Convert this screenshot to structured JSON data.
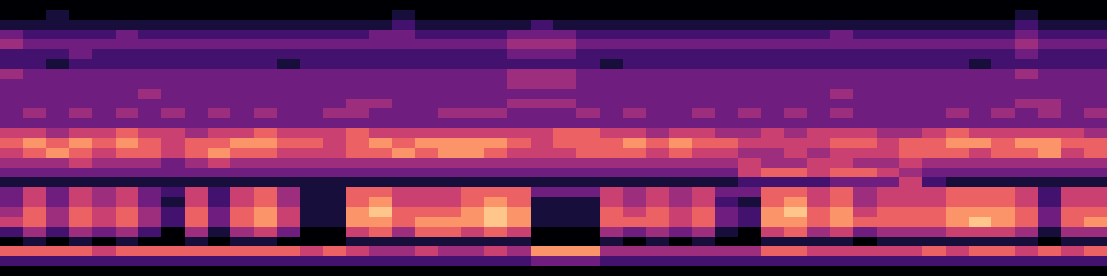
{
  "chart_data": {
    "type": "heatmap",
    "tick_labels": false,
    "zlim": [
      0,
      9
    ],
    "cells": [
      [
        0,
        0,
        0,
        0,
        0,
        0,
        0,
        0,
        0,
        0,
        0,
        0,
        0,
        0,
        0,
        0,
        0,
        0,
        0,
        0,
        0,
        0,
        0,
        0,
        0,
        0,
        0,
        0,
        0,
        0,
        0,
        0,
        0,
        0,
        0,
        0,
        0,
        0,
        0,
        0,
        0,
        0,
        0,
        0,
        0,
        0,
        0,
        0
      ],
      [
        0,
        0,
        1,
        0,
        0,
        0,
        0,
        0,
        0,
        0,
        0,
        0,
        0,
        0,
        0,
        0,
        0,
        1,
        0,
        0,
        0,
        0,
        0,
        0,
        0,
        0,
        0,
        0,
        0,
        0,
        0,
        0,
        0,
        0,
        0,
        0,
        0,
        0,
        0,
        0,
        0,
        0,
        0,
        0,
        1,
        0,
        0,
        0
      ],
      [
        1,
        1,
        1,
        1,
        1,
        1,
        1,
        1,
        1,
        1,
        1,
        1,
        1,
        1,
        1,
        1,
        1,
        2,
        1,
        1,
        1,
        1,
        1,
        2,
        1,
        1,
        1,
        1,
        1,
        1,
        1,
        1,
        1,
        1,
        1,
        1,
        1,
        1,
        1,
        1,
        1,
        1,
        1,
        1,
        2,
        1,
        1,
        1
      ],
      [
        3,
        2,
        2,
        2,
        2,
        3,
        2,
        2,
        2,
        2,
        2,
        2,
        2,
        2,
        2,
        2,
        3,
        3,
        2,
        2,
        2,
        2,
        3,
        3,
        3,
        2,
        2,
        2,
        2,
        2,
        2,
        2,
        2,
        2,
        2,
        2,
        3,
        2,
        2,
        2,
        2,
        2,
        2,
        2,
        3,
        2,
        2,
        2
      ],
      [
        4,
        3,
        3,
        3,
        3,
        3,
        3,
        3,
        3,
        3,
        3,
        3,
        3,
        3,
        3,
        3,
        3,
        3,
        3,
        3,
        3,
        3,
        4,
        4,
        4,
        3,
        3,
        3,
        3,
        3,
        3,
        3,
        3,
        3,
        3,
        3,
        3,
        3,
        3,
        3,
        3,
        3,
        3,
        3,
        4,
        3,
        3,
        3
      ],
      [
        2,
        2,
        2,
        3,
        2,
        2,
        2,
        2,
        2,
        2,
        2,
        2,
        2,
        2,
        2,
        2,
        2,
        2,
        2,
        2,
        2,
        2,
        3,
        3,
        3,
        2,
        2,
        2,
        2,
        2,
        2,
        2,
        2,
        2,
        2,
        2,
        2,
        2,
        2,
        2,
        2,
        2,
        2,
        2,
        3,
        2,
        2,
        2
      ],
      [
        2,
        2,
        1,
        2,
        2,
        2,
        2,
        2,
        2,
        2,
        2,
        2,
        1,
        2,
        2,
        2,
        2,
        2,
        2,
        2,
        2,
        2,
        2,
        2,
        2,
        2,
        1,
        2,
        2,
        2,
        2,
        2,
        2,
        2,
        2,
        2,
        2,
        2,
        2,
        2,
        2,
        2,
        1,
        2,
        2,
        2,
        2,
        2
      ],
      [
        4,
        3,
        3,
        3,
        3,
        3,
        3,
        3,
        3,
        3,
        3,
        3,
        3,
        3,
        3,
        3,
        3,
        3,
        3,
        3,
        3,
        3,
        4,
        4,
        4,
        3,
        3,
        3,
        3,
        3,
        3,
        3,
        3,
        3,
        3,
        3,
        3,
        3,
        3,
        3,
        3,
        3,
        3,
        3,
        4,
        3,
        3,
        3
      ],
      [
        3,
        3,
        3,
        3,
        3,
        3,
        3,
        3,
        3,
        3,
        3,
        3,
        3,
        3,
        3,
        3,
        3,
        3,
        3,
        3,
        3,
        3,
        4,
        4,
        4,
        3,
        3,
        3,
        3,
        3,
        3,
        3,
        3,
        3,
        3,
        3,
        3,
        3,
        3,
        3,
        3,
        3,
        3,
        3,
        3,
        3,
        3,
        3
      ],
      [
        3,
        3,
        3,
        3,
        3,
        3,
        4,
        3,
        3,
        3,
        3,
        3,
        3,
        3,
        3,
        3,
        3,
        3,
        3,
        3,
        3,
        3,
        3,
        3,
        3,
        3,
        3,
        3,
        3,
        3,
        3,
        3,
        3,
        3,
        3,
        3,
        4,
        3,
        3,
        3,
        3,
        3,
        3,
        3,
        3,
        3,
        3,
        3
      ],
      [
        3,
        3,
        3,
        3,
        3,
        3,
        3,
        3,
        3,
        3,
        3,
        3,
        3,
        3,
        3,
        4,
        4,
        3,
        3,
        3,
        3,
        3,
        4,
        4,
        4,
        3,
        3,
        3,
        3,
        3,
        3,
        3,
        3,
        3,
        3,
        3,
        3,
        3,
        3,
        3,
        3,
        3,
        3,
        3,
        4,
        4,
        3,
        3
      ],
      [
        3,
        4,
        3,
        4,
        3,
        4,
        3,
        4,
        3,
        4,
        3,
        4,
        3,
        3,
        4,
        4,
        3,
        3,
        3,
        4,
        4,
        4,
        3,
        3,
        3,
        4,
        3,
        4,
        3,
        3,
        4,
        3,
        4,
        3,
        4,
        3,
        4,
        3,
        3,
        3,
        3,
        4,
        3,
        4,
        3,
        4,
        3,
        4
      ],
      [
        3,
        3,
        3,
        3,
        3,
        3,
        3,
        3,
        3,
        3,
        3,
        3,
        3,
        3,
        3,
        3,
        3,
        3,
        3,
        3,
        3,
        3,
        3,
        3,
        3,
        3,
        3,
        3,
        3,
        3,
        3,
        3,
        3,
        3,
        3,
        3,
        3,
        3,
        3,
        3,
        3,
        3,
        3,
        3,
        3,
        3,
        3,
        3
      ],
      [
        5,
        5,
        4,
        5,
        5,
        6,
        5,
        5,
        4,
        5,
        5,
        6,
        5,
        5,
        5,
        6,
        5,
        5,
        5,
        5,
        5,
        5,
        5,
        5,
        6,
        6,
        5,
        5,
        4,
        5,
        5,
        4,
        4,
        5,
        4,
        5,
        5,
        5,
        4,
        4,
        5,
        6,
        5,
        5,
        5,
        5,
        5,
        4
      ],
      [
        6,
        7,
        6,
        7,
        6,
        7,
        6,
        5,
        6,
        6,
        7,
        7,
        6,
        6,
        5,
        6,
        7,
        6,
        7,
        7,
        7,
        7,
        6,
        5,
        6,
        6,
        6,
        7,
        6,
        7,
        6,
        6,
        5,
        5,
        5,
        5,
        6,
        6,
        5,
        6,
        6,
        7,
        7,
        6,
        7,
        7,
        6,
        6
      ],
      [
        5,
        6,
        7,
        6,
        5,
        6,
        6,
        5,
        6,
        7,
        6,
        6,
        5,
        5,
        5,
        6,
        6,
        7,
        6,
        7,
        7,
        6,
        5,
        5,
        5,
        6,
        6,
        6,
        5,
        6,
        5,
        5,
        4,
        4,
        5,
        4,
        5,
        5,
        5,
        6,
        6,
        6,
        5,
        6,
        6,
        7,
        5,
        6
      ],
      [
        4,
        4,
        4,
        5,
        4,
        4,
        4,
        3,
        4,
        5,
        4,
        4,
        4,
        4,
        4,
        4,
        4,
        4,
        4,
        4,
        4,
        4,
        4,
        4,
        4,
        4,
        4,
        4,
        4,
        4,
        4,
        4,
        5,
        4,
        4,
        5,
        5,
        4,
        4,
        5,
        4,
        4,
        4,
        4,
        4,
        4,
        4,
        4
      ],
      [
        3,
        3,
        3,
        3,
        3,
        3,
        3,
        3,
        3,
        3,
        3,
        3,
        3,
        3,
        3,
        3,
        3,
        3,
        3,
        3,
        3,
        3,
        3,
        3,
        3,
        3,
        3,
        3,
        3,
        3,
        3,
        3,
        5,
        6,
        6,
        5,
        6,
        6,
        5,
        4,
        3,
        3,
        3,
        3,
        3,
        3,
        3,
        3
      ],
      [
        1,
        1,
        1,
        1,
        1,
        1,
        1,
        1,
        1,
        1,
        1,
        1,
        1,
        1,
        1,
        1,
        1,
        1,
        1,
        1,
        1,
        1,
        1,
        1,
        1,
        1,
        1,
        1,
        1,
        1,
        1,
        1,
        2,
        2,
        2,
        2,
        3,
        3,
        3,
        5,
        2,
        1,
        1,
        1,
        1,
        1,
        1,
        1
      ],
      [
        3,
        5,
        3,
        5,
        4,
        5,
        3,
        2,
        5,
        2,
        5,
        6,
        4,
        1,
        1,
        6,
        6,
        5,
        5,
        5,
        6,
        6,
        6,
        3,
        3,
        3,
        5,
        4,
        5,
        4,
        5,
        3,
        3,
        6,
        6,
        5,
        6,
        4,
        5,
        5,
        5,
        6,
        6,
        6,
        5,
        2,
        5,
        5
      ],
      [
        3,
        5,
        3,
        5,
        4,
        5,
        3,
        1,
        5,
        2,
        5,
        6,
        4,
        1,
        1,
        6,
        7,
        5,
        5,
        5,
        6,
        7,
        6,
        1,
        1,
        1,
        5,
        4,
        5,
        4,
        5,
        2,
        1,
        6,
        7,
        5,
        6,
        4,
        5,
        5,
        5,
        6,
        6,
        6,
        5,
        2,
        5,
        5
      ],
      [
        4,
        6,
        4,
        6,
        5,
        6,
        4,
        2,
        6,
        3,
        6,
        7,
        5,
        1,
        1,
        7,
        8,
        6,
        6,
        6,
        7,
        8,
        7,
        1,
        1,
        1,
        6,
        5,
        6,
        5,
        6,
        3,
        2,
        7,
        8,
        6,
        7,
        5,
        6,
        6,
        6,
        7,
        7,
        7,
        6,
        3,
        6,
        6
      ],
      [
        5,
        6,
        4,
        6,
        5,
        6,
        4,
        2,
        6,
        3,
        6,
        7,
        5,
        1,
        1,
        7,
        7,
        6,
        7,
        7,
        7,
        8,
        7,
        1,
        1,
        1,
        6,
        6,
        6,
        5,
        6,
        3,
        2,
        7,
        7,
        6,
        7,
        6,
        6,
        6,
        6,
        7,
        8,
        7,
        6,
        3,
        6,
        7
      ],
      [
        2,
        4,
        2,
        4,
        3,
        4,
        2,
        0,
        4,
        1,
        4,
        5,
        3,
        0,
        0,
        5,
        6,
        4,
        6,
        6,
        5,
        6,
        5,
        0,
        0,
        0,
        4,
        3,
        4,
        3,
        4,
        1,
        0,
        5,
        6,
        4,
        5,
        3,
        4,
        4,
        4,
        5,
        5,
        5,
        4,
        1,
        4,
        4
      ],
      [
        0,
        1,
        0,
        1,
        0,
        1,
        0,
        0,
        1,
        0,
        1,
        1,
        0,
        0,
        0,
        1,
        1,
        1,
        1,
        1,
        1,
        1,
        1,
        0,
        0,
        0,
        1,
        0,
        1,
        0,
        1,
        0,
        0,
        1,
        1,
        1,
        1,
        0,
        1,
        1,
        1,
        1,
        1,
        1,
        1,
        0,
        1,
        1
      ],
      [
        6,
        6,
        6,
        6,
        5,
        6,
        6,
        6,
        6,
        6,
        6,
        6,
        6,
        5,
        6,
        5,
        4,
        4,
        5,
        4,
        4,
        5,
        4,
        7,
        7,
        7,
        4,
        4,
        4,
        4,
        4,
        4,
        4,
        6,
        6,
        5,
        5,
        5,
        5,
        5,
        6,
        5,
        6,
        6,
        5,
        6,
        5,
        6
      ],
      [
        2,
        2,
        2,
        2,
        2,
        2,
        2,
        2,
        2,
        2,
        2,
        2,
        2,
        2,
        2,
        2,
        2,
        2,
        2,
        2,
        2,
        2,
        2,
        3,
        3,
        3,
        2,
        2,
        2,
        2,
        2,
        2,
        2,
        2,
        2,
        2,
        2,
        2,
        2,
        2,
        2,
        2,
        2,
        2,
        2,
        2,
        2,
        2
      ],
      [
        0,
        0,
        0,
        0,
        0,
        0,
        0,
        0,
        0,
        0,
        0,
        0,
        0,
        0,
        0,
        0,
        0,
        0,
        0,
        0,
        0,
        0,
        0,
        0,
        0,
        0,
        0,
        0,
        0,
        0,
        0,
        0,
        0,
        0,
        0,
        0,
        0,
        0,
        0,
        0,
        0,
        0,
        0,
        0,
        0,
        0,
        0,
        0
      ]
    ]
  }
}
